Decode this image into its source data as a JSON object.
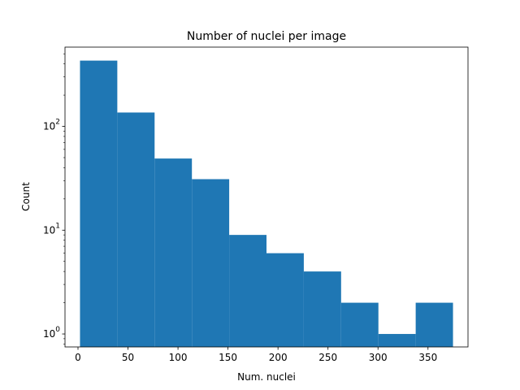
{
  "chart_data": {
    "type": "bar",
    "title": "Number of nuclei per image",
    "xlabel": "Num. nuclei",
    "ylabel": "Count",
    "yscale": "log",
    "xlim": [
      -13,
      390
    ],
    "ylim": [
      0.75,
      580
    ],
    "xticks": [
      0,
      50,
      100,
      150,
      200,
      250,
      300,
      350
    ],
    "yticks": [
      {
        "value": 1,
        "base": "10",
        "exp": "0"
      },
      {
        "value": 10,
        "base": "10",
        "exp": "1"
      },
      {
        "value": 100,
        "base": "10",
        "exp": "2"
      }
    ],
    "bins": [
      {
        "x0": 2,
        "x1": 39.3,
        "count": 430
      },
      {
        "x0": 39.3,
        "x1": 76.6,
        "count": 136
      },
      {
        "x0": 76.6,
        "x1": 113.9,
        "count": 49
      },
      {
        "x0": 113.9,
        "x1": 151.2,
        "count": 31
      },
      {
        "x0": 151.2,
        "x1": 188.5,
        "count": 9
      },
      {
        "x0": 188.5,
        "x1": 225.8,
        "count": 6
      },
      {
        "x0": 225.8,
        "x1": 263.1,
        "count": 4
      },
      {
        "x0": 263.1,
        "x1": 300.4,
        "count": 2
      },
      {
        "x0": 300.4,
        "x1": 337.7,
        "count": 1
      },
      {
        "x0": 337.7,
        "x1": 375,
        "count": 2
      }
    ],
    "bar_color": "#1f77b4",
    "grid": false,
    "legend": "none"
  }
}
